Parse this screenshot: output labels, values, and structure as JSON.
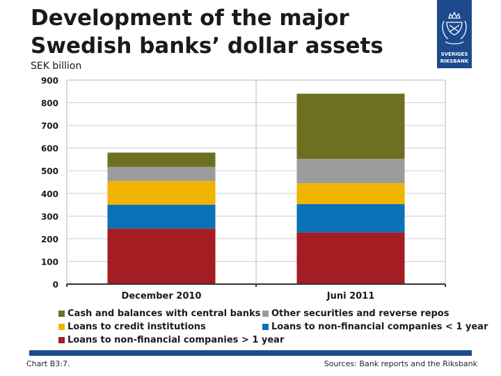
{
  "title": "Development of the major Swedish banks’ dollar assets",
  "logo": {
    "line1": "SVERIGES",
    "line2": "RIKSBANK",
    "color": "#1c4a8c"
  },
  "footer": {
    "left": "Chart B3:7.",
    "right": "Sources: Bank reports and the Riksbank"
  },
  "chart_data": {
    "type": "bar",
    "stacked": true,
    "unit_label": "SEK billion",
    "categories": [
      "December 2010",
      "Juni 2011"
    ],
    "ylim": [
      0,
      900
    ],
    "yticks": [
      0,
      100,
      200,
      300,
      400,
      500,
      600,
      700,
      800,
      900
    ],
    "grid": true,
    "legend_position": "bottom",
    "series": [
      {
        "name": "Loans to non-financial companies > 1 year",
        "color": "#a51d23",
        "values": [
          245,
          228
        ]
      },
      {
        "name": "Loans to non-financial companies < 1 year",
        "color": "#0b72b8",
        "values": [
          105,
          125
        ]
      },
      {
        "name": "Loans to credit institutions",
        "color": "#f0b400",
        "values": [
          105,
          92
        ]
      },
      {
        "name": "Other securities and reverse repos",
        "color": "#9c9c9c",
        "values": [
          62,
          108
        ]
      },
      {
        "name": "Cash and balances with central banks",
        "color": "#6f6f22",
        "values": [
          63,
          287
        ]
      }
    ]
  }
}
